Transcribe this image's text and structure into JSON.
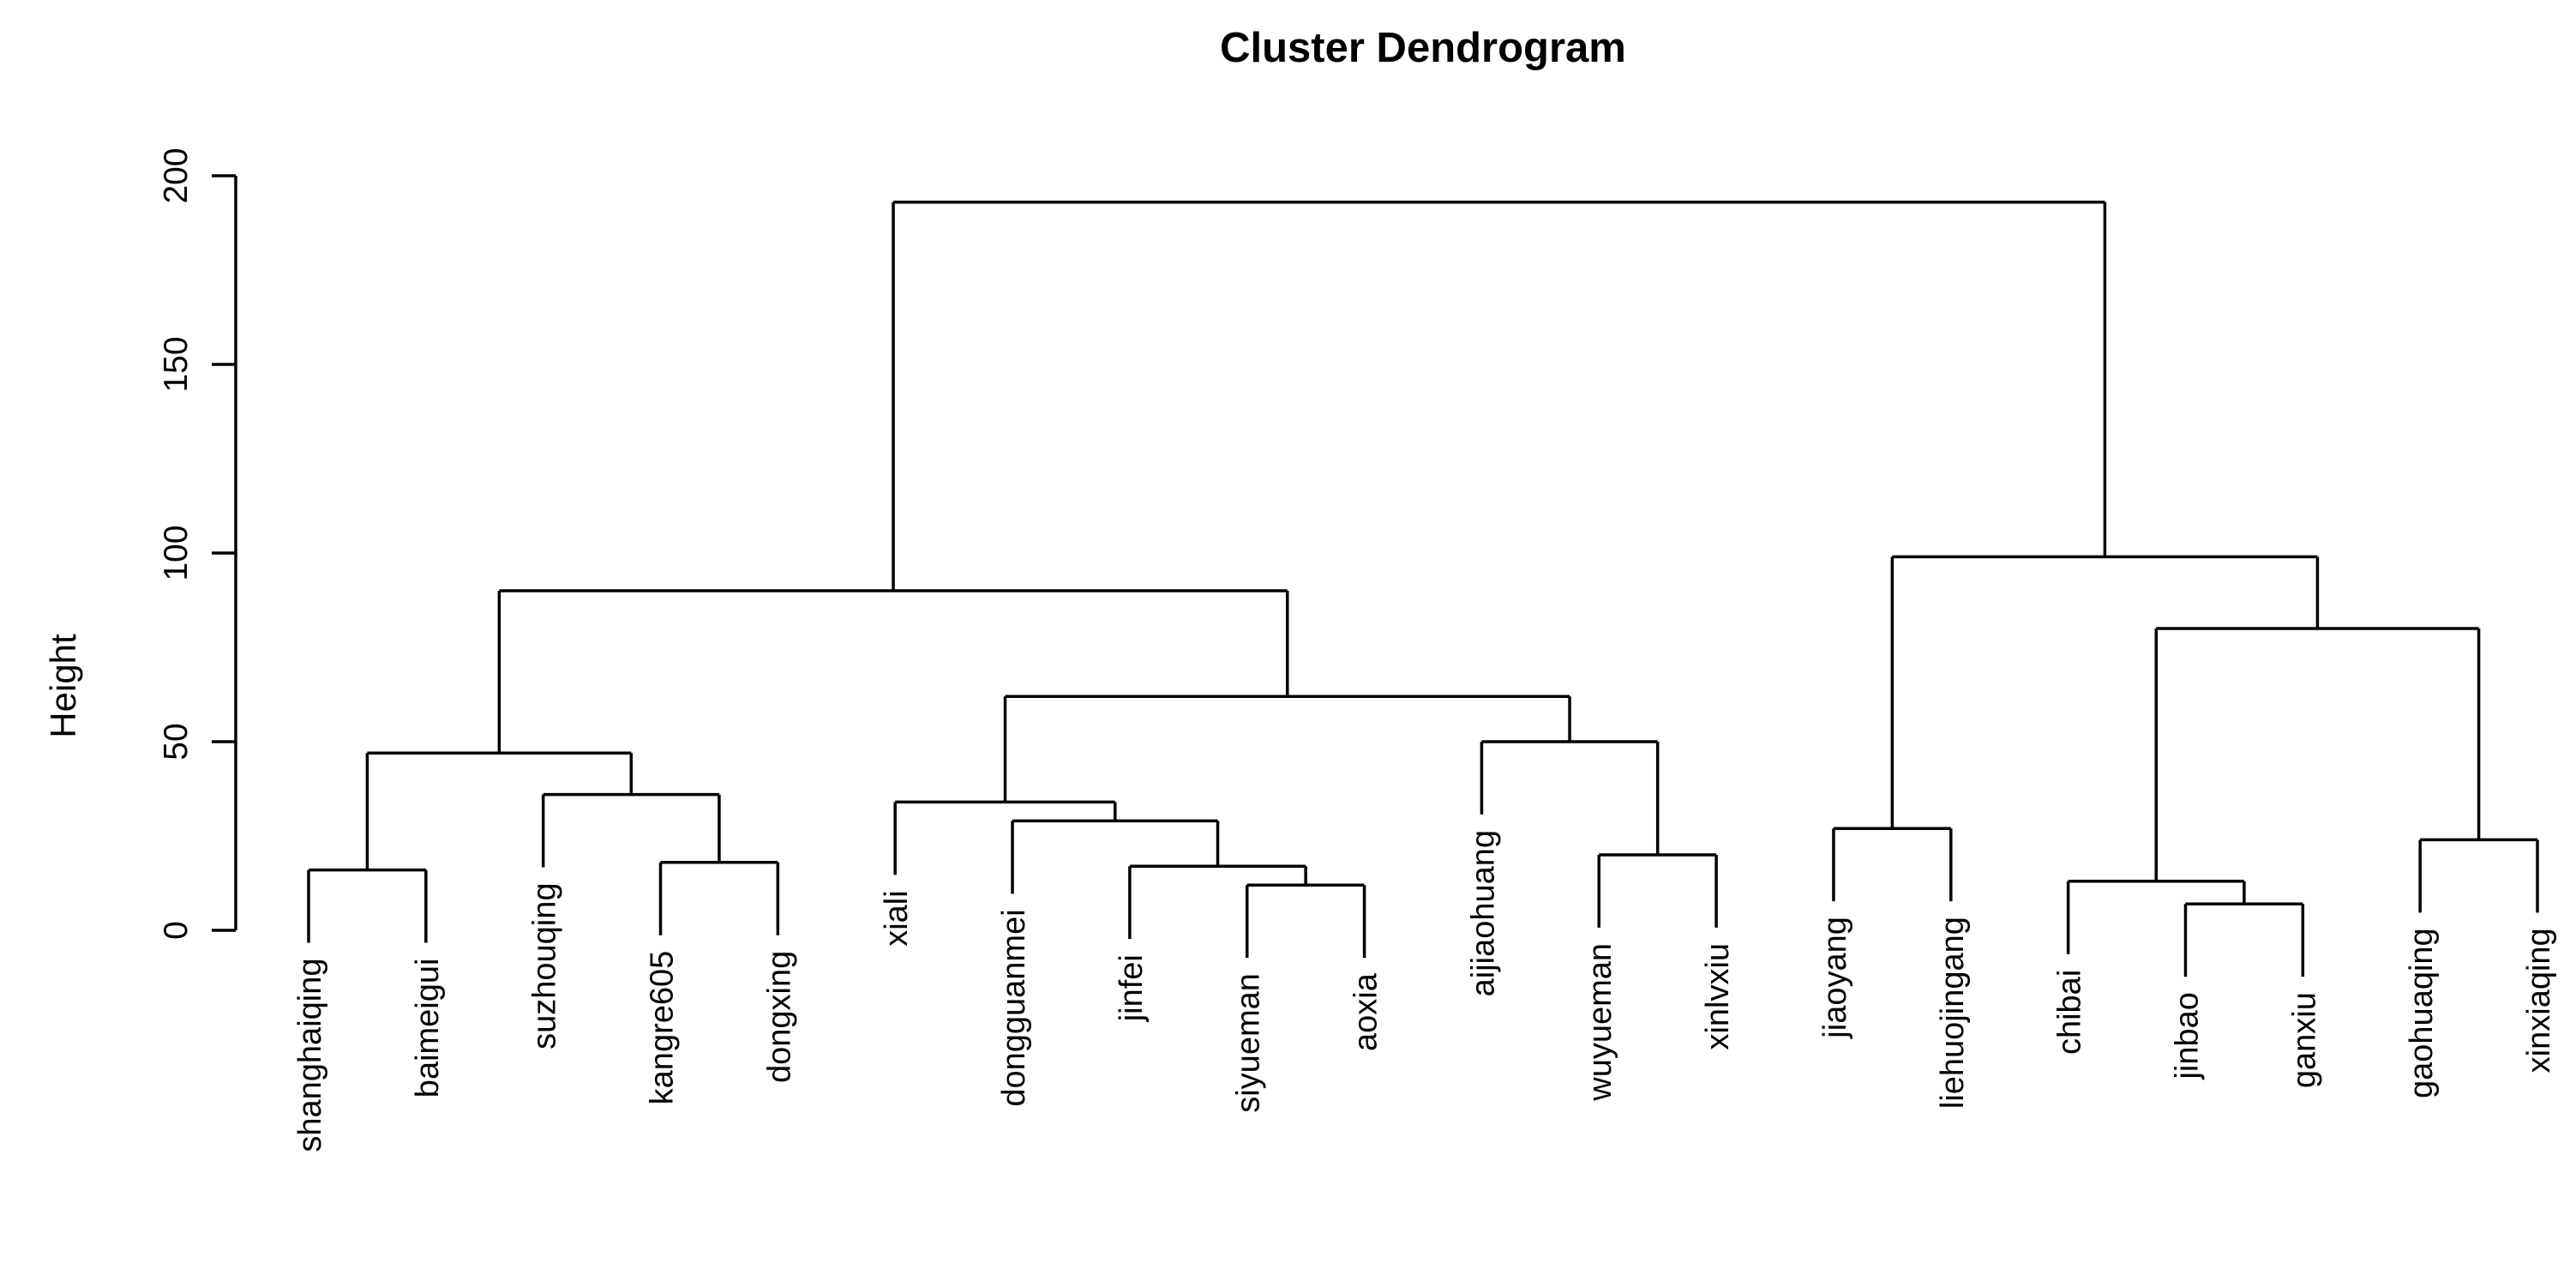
{
  "chart_data": {
    "type": "dendrogram",
    "title": "Cluster Dendrogram",
    "xlabel": "",
    "ylabel": "Height",
    "yticks": [
      0,
      50,
      100,
      150,
      200
    ],
    "ylim": [
      0,
      200
    ],
    "grid": false,
    "legend": "none",
    "line_color": "#000000",
    "background_color": "#ffffff",
    "hang_drop": 19.3,
    "leaves": [
      "shanghaiqing",
      "baimeigui",
      "suzhouqing",
      "kangre605",
      "dongxing",
      "xiali",
      "dongguanmei",
      "jinfei",
      "siyueman",
      "aoxia",
      "aijiaohuang",
      "wuyueman",
      "xinlvxiu",
      "jiaoyang",
      "liehuojingang",
      "chibai",
      "jinbao",
      "ganxiu",
      "gaohuaqing",
      "xinxiaqing"
    ],
    "merges": [
      {
        "id": "n1",
        "children": [
          "shanghaiqing",
          "baimeigui"
        ],
        "height": 16
      },
      {
        "id": "n2",
        "children": [
          "kangre605",
          "dongxing"
        ],
        "height": 18
      },
      {
        "id": "n3",
        "children": [
          "suzhouqing",
          "n2"
        ],
        "height": 36
      },
      {
        "id": "n4",
        "children": [
          "n1",
          "n3"
        ],
        "height": 47
      },
      {
        "id": "n5",
        "children": [
          "siyueman",
          "aoxia"
        ],
        "height": 12
      },
      {
        "id": "n6",
        "children": [
          "jinfei",
          "n5"
        ],
        "height": 17
      },
      {
        "id": "n7",
        "children": [
          "dongguanmei",
          "n6"
        ],
        "height": 29
      },
      {
        "id": "n8",
        "children": [
          "xiali",
          "n7"
        ],
        "height": 34
      },
      {
        "id": "n9",
        "children": [
          "wuyueman",
          "xinlvxiu"
        ],
        "height": 20
      },
      {
        "id": "n10",
        "children": [
          "aijiaohuang",
          "n9"
        ],
        "height": 50
      },
      {
        "id": "n11",
        "children": [
          "n8",
          "n10"
        ],
        "height": 62
      },
      {
        "id": "n12",
        "children": [
          "n4",
          "n11"
        ],
        "height": 90
      },
      {
        "id": "n13",
        "children": [
          "jiaoyang",
          "liehuojingang"
        ],
        "height": 27
      },
      {
        "id": "n14",
        "children": [
          "jinbao",
          "ganxiu"
        ],
        "height": 7
      },
      {
        "id": "n15",
        "children": [
          "chibai",
          "n14"
        ],
        "height": 13
      },
      {
        "id": "n16",
        "children": [
          "gaohuaqing",
          "xinxiaqing"
        ],
        "height": 24
      },
      {
        "id": "n17",
        "children": [
          "n15",
          "n16"
        ],
        "height": 80
      },
      {
        "id": "n18",
        "children": [
          "n13",
          "n17"
        ],
        "height": 99
      },
      {
        "id": "root",
        "children": [
          "n12",
          "n18"
        ],
        "height": 193
      }
    ]
  }
}
